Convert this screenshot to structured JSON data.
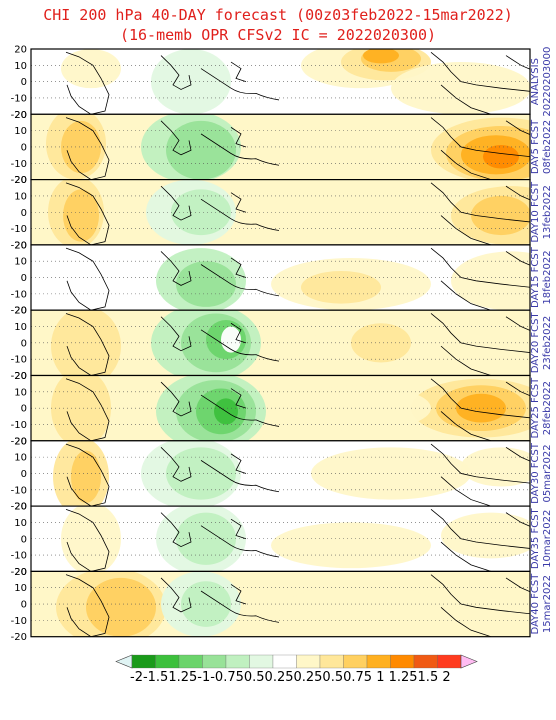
{
  "title_line1": "CHI 200 hPa 40-DAY forecast (00z03feb2022-15mar2022)",
  "title_line2": "(16-memb OPR CFSv2 IC = 2022020300)",
  "y_ticks": [
    "20",
    "10",
    "0",
    "-10",
    "-20"
  ],
  "panels": [
    {
      "label": "ANALYSIS",
      "date": "20220203000",
      "lat_color_band": "white"
    },
    {
      "label": "DAY5 FCST",
      "date": "08feb2022"
    },
    {
      "label": "DAY10 FCST",
      "date": "13feb2022"
    },
    {
      "label": "DAY15 FCST",
      "date": "18feb2022"
    },
    {
      "label": "DAY20 FCST",
      "date": "23feb2022"
    },
    {
      "label": "DAY25 FCST",
      "date": "28feb2022"
    },
    {
      "label": "DAY30 FCST",
      "date": "05mar2022"
    },
    {
      "label": "DAY35 FCST",
      "date": "10mar2022"
    },
    {
      "label": "DAY40 FCST",
      "date": "15mar2022"
    }
  ],
  "colorbar": {
    "labels": [
      "-2",
      "-1.5",
      "1.25",
      "-1",
      "-0.75",
      "0.5",
      "0.25",
      "0.25",
      "0.5",
      "0.75",
      "1",
      "1.25",
      "1.5",
      "2"
    ],
    "label_text": "-2-1.51.25-1-0.750.50.250.250.50.75 1 1.251.5 2",
    "colors": [
      "#1a9a1a",
      "#3cc03c",
      "#6bd46b",
      "#98e298",
      "#c0f0c0",
      "#e2f8e2",
      "#ffffff",
      "#fff7c8",
      "#ffe79a",
      "#ffd060",
      "#ffb020",
      "#ff8a00",
      "#f05a14",
      "#ff3b1f"
    ],
    "low_arrow_color": "#e0f4f4",
    "high_arrow_color": "#ffbcf2"
  }
}
